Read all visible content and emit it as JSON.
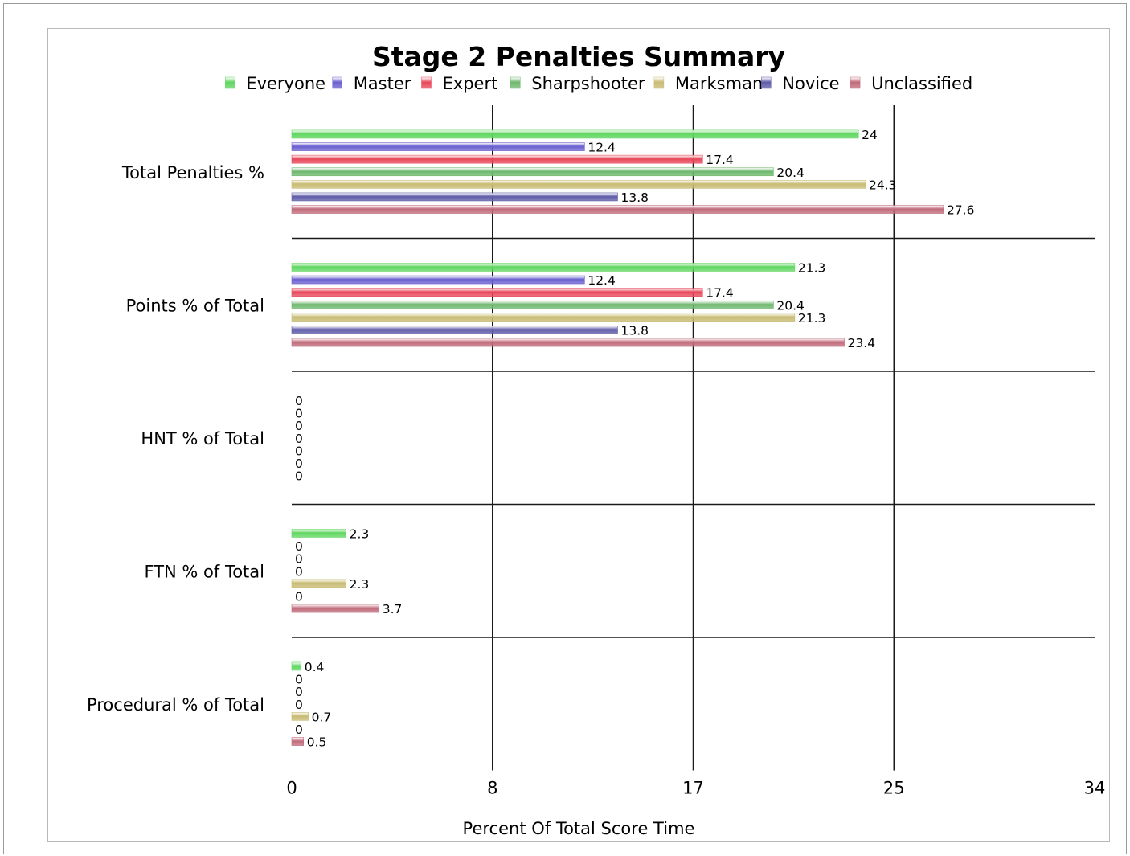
{
  "chart_data": {
    "type": "bar",
    "orientation": "horizontal",
    "title": "Stage 2 Penalties Summary",
    "xlabel": "Percent Of Total Score Time",
    "ylabel": "",
    "xlim": [
      0,
      34
    ],
    "x_ticks": [
      "0",
      "8",
      "17",
      "25",
      "34"
    ],
    "x_tick_values": [
      0,
      8.5,
      17,
      25.5,
      34
    ],
    "grid": "vertical lines at ticks, horizontal separators between groups",
    "legend_position": "top",
    "categories": [
      "Total Penalties %",
      "Points % of Total",
      "HNT % of Total",
      "FTN % of Total",
      "Procedural % of Total"
    ],
    "series": [
      {
        "name": "Everyone",
        "color": "#5fd65f",
        "values": [
          24,
          21.3,
          0,
          2.3,
          0.4
        ],
        "labels": [
          "24",
          "21.3",
          "0",
          "2.3",
          "0.4"
        ]
      },
      {
        "name": "Master",
        "color": "#6a5fcf",
        "values": [
          12.4,
          12.4,
          0,
          0,
          0
        ],
        "labels": [
          "12.4",
          "12.4",
          "0",
          "0",
          "0"
        ]
      },
      {
        "name": "Expert",
        "color": "#e8475a",
        "values": [
          17.4,
          17.4,
          0,
          0,
          0
        ],
        "labels": [
          "17.4",
          "17.4",
          "0",
          "0",
          "0"
        ]
      },
      {
        "name": "Sharpshooter",
        "color": "#6fb86f",
        "values": [
          20.4,
          20.4,
          0,
          0,
          0
        ],
        "labels": [
          "20.4",
          "20.4",
          "0",
          "0",
          "0"
        ]
      },
      {
        "name": "Marksman",
        "color": "#c8bb72",
        "values": [
          24.3,
          21.3,
          0,
          2.3,
          0.7
        ],
        "labels": [
          "24.3",
          "21.3",
          "0",
          "2.3",
          "0.7"
        ]
      },
      {
        "name": "Novice",
        "color": "#5f5ca8",
        "values": [
          13.8,
          13.8,
          0,
          0,
          0
        ],
        "labels": [
          "13.8",
          "13.8",
          "0",
          "0",
          "0"
        ]
      },
      {
        "name": "Unclassified",
        "color": "#c06a7a",
        "values": [
          27.6,
          23.4,
          0,
          3.7,
          0.5
        ],
        "labels": [
          "27.6",
          "23.4",
          "0",
          "3.7",
          "0.5"
        ]
      }
    ]
  }
}
